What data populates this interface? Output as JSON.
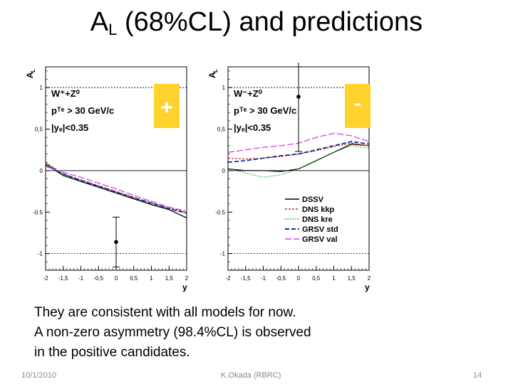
{
  "slide": {
    "title_main": "A",
    "title_sub": "L",
    "title_rest": " (68%CL) and predictions",
    "body_lines": [
      "They are consistent with all models for now.",
      "A non-zero asymmetry (98.4%CL) is observed",
      " in the positive candidates."
    ],
    "footer_date": "10/1/2010",
    "footer_author": "K.Okada (RBRC)",
    "footer_page": "14",
    "plus_label": "+",
    "minus_label": "-"
  },
  "colors": {
    "sign_box": "#ffd22e",
    "DSSV": "#000000",
    "DNS kkp": "#cc3333",
    "DNS kre": "#22aa22",
    "GRSV std": "#1a2a99",
    "GRSV val": "#e040e0"
  },
  "chart_data": [
    {
      "type": "line",
      "name": "W+",
      "ylabel": "A",
      "ylabel_sub": "L",
      "xlabel": "y",
      "xlim": [
        -2,
        2
      ],
      "ylim": [
        -1.2,
        1.25
      ],
      "xticks": [
        -2,
        -1.5,
        -1,
        -0.5,
        0,
        0.5,
        1,
        1.5,
        2
      ],
      "xtick_labels": [
        "-2",
        "-1,5",
        "-1",
        "-0,5",
        "0",
        "0,5",
        "1",
        "1,5",
        "2"
      ],
      "yticks": [
        -1,
        -0.5,
        0,
        0.5,
        1
      ],
      "ytick_labels": [
        "-1",
        "-0.5",
        "0",
        "0,5",
        "1"
      ],
      "annotations": [
        "W⁺+Z⁰",
        "pᵀᵉ > 30 GeV/c",
        "|yₑ|<0.35"
      ],
      "data_points": [
        {
          "x": 0,
          "y": -0.86,
          "yerr_low": 0.3,
          "yerr_high": 0.3
        }
      ],
      "series": [
        {
          "name": "DSSV",
          "x": [
            -2,
            -1.5,
            -1,
            -0.5,
            0,
            0.5,
            1,
            1.5,
            2
          ],
          "y": [
            0.08,
            -0.06,
            -0.13,
            -0.2,
            -0.27,
            -0.34,
            -0.41,
            -0.47,
            -0.57
          ]
        },
        {
          "name": "DNS kkp",
          "x": [
            -2,
            -1.5,
            -1,
            -0.5,
            0,
            0.5,
            1,
            1.5,
            2
          ],
          "y": [
            0.1,
            -0.04,
            -0.11,
            -0.18,
            -0.25,
            -0.32,
            -0.39,
            -0.45,
            -0.5
          ]
        },
        {
          "name": "DNS kre",
          "x": [
            -2,
            -1.5,
            -1,
            -0.5,
            0,
            0.5,
            1,
            1.5,
            2
          ],
          "y": [
            0.09,
            -0.05,
            -0.12,
            -0.19,
            -0.26,
            -0.33,
            -0.4,
            -0.46,
            -0.52
          ]
        },
        {
          "name": "GRSV std",
          "x": [
            -2,
            -1.5,
            -1,
            -0.5,
            0,
            0.5,
            1,
            1.5,
            2
          ],
          "y": [
            0.07,
            -0.04,
            -0.12,
            -0.19,
            -0.26,
            -0.33,
            -0.39,
            -0.46,
            -0.51
          ]
        },
        {
          "name": "GRSV val",
          "x": [
            -2,
            -1.5,
            -1,
            -0.5,
            0,
            0.5,
            1,
            1.5,
            2
          ],
          "y": [
            0.05,
            -0.02,
            -0.08,
            -0.15,
            -0.22,
            -0.3,
            -0.37,
            -0.44,
            -0.49
          ]
        }
      ]
    },
    {
      "type": "line",
      "name": "W-",
      "ylabel": "A",
      "ylabel_sub": "L",
      "xlabel": "y",
      "xlim": [
        -2,
        2
      ],
      "ylim": [
        -1.2,
        1.25
      ],
      "xticks": [
        -2,
        -1.5,
        -1,
        -0.5,
        0,
        0.5,
        1,
        1.5,
        2
      ],
      "xtick_labels": [
        "-2",
        "-1,5",
        "-1",
        "-0,5",
        "0",
        "0,5",
        "1",
        "1,5",
        "2"
      ],
      "yticks": [
        -1,
        -0.5,
        0,
        0.5,
        1
      ],
      "ytick_labels": [
        "-1",
        "-0.5",
        "0",
        "0,5",
        "1"
      ],
      "annotations": [
        "W⁻+Z⁰",
        "pᵀᵉ > 30 GeV/c",
        "|yₑ|<0.35"
      ],
      "data_points": [
        {
          "x": 0,
          "y": 0.89,
          "yerr_low": 0.66,
          "yerr_high": 0.94
        }
      ],
      "legend": {
        "position": "bottom-right",
        "entries": [
          "DSSV",
          "DNS kkp",
          "DNS kre",
          "GRSV std",
          "GRSV val"
        ]
      },
      "series": [
        {
          "name": "DSSV",
          "x": [
            -2,
            -1.5,
            -1,
            -0.5,
            0,
            0.5,
            1,
            1.5,
            2
          ],
          "y": [
            0.02,
            0.0,
            0.0,
            -0.01,
            0.02,
            0.12,
            0.22,
            0.32,
            0.3
          ]
        },
        {
          "name": "DNS kkp",
          "x": [
            -2,
            -1.5,
            -1,
            -0.5,
            0,
            0.5,
            1,
            1.5,
            2
          ],
          "y": [
            0.15,
            0.14,
            0.15,
            0.17,
            0.2,
            0.24,
            0.29,
            0.33,
            0.3
          ]
        },
        {
          "name": "DNS kre",
          "x": [
            -2,
            -1.5,
            -1,
            -0.5,
            0,
            0.5,
            1,
            1.5,
            2
          ],
          "y": [
            0.03,
            -0.03,
            -0.08,
            -0.05,
            0.02,
            0.12,
            0.22,
            0.3,
            0.27
          ]
        },
        {
          "name": "GRSV std",
          "x": [
            -2,
            -1.5,
            -1,
            -0.5,
            0,
            0.5,
            1,
            1.5,
            2
          ],
          "y": [
            0.1,
            0.12,
            0.15,
            0.18,
            0.2,
            0.25,
            0.3,
            0.35,
            0.32
          ]
        },
        {
          "name": "GRSV val",
          "x": [
            -2,
            -1.5,
            -1,
            -0.5,
            0,
            0.5,
            1,
            1.5,
            2
          ],
          "y": [
            0.22,
            0.25,
            0.28,
            0.3,
            0.33,
            0.4,
            0.45,
            0.42,
            0.35
          ]
        }
      ]
    }
  ]
}
